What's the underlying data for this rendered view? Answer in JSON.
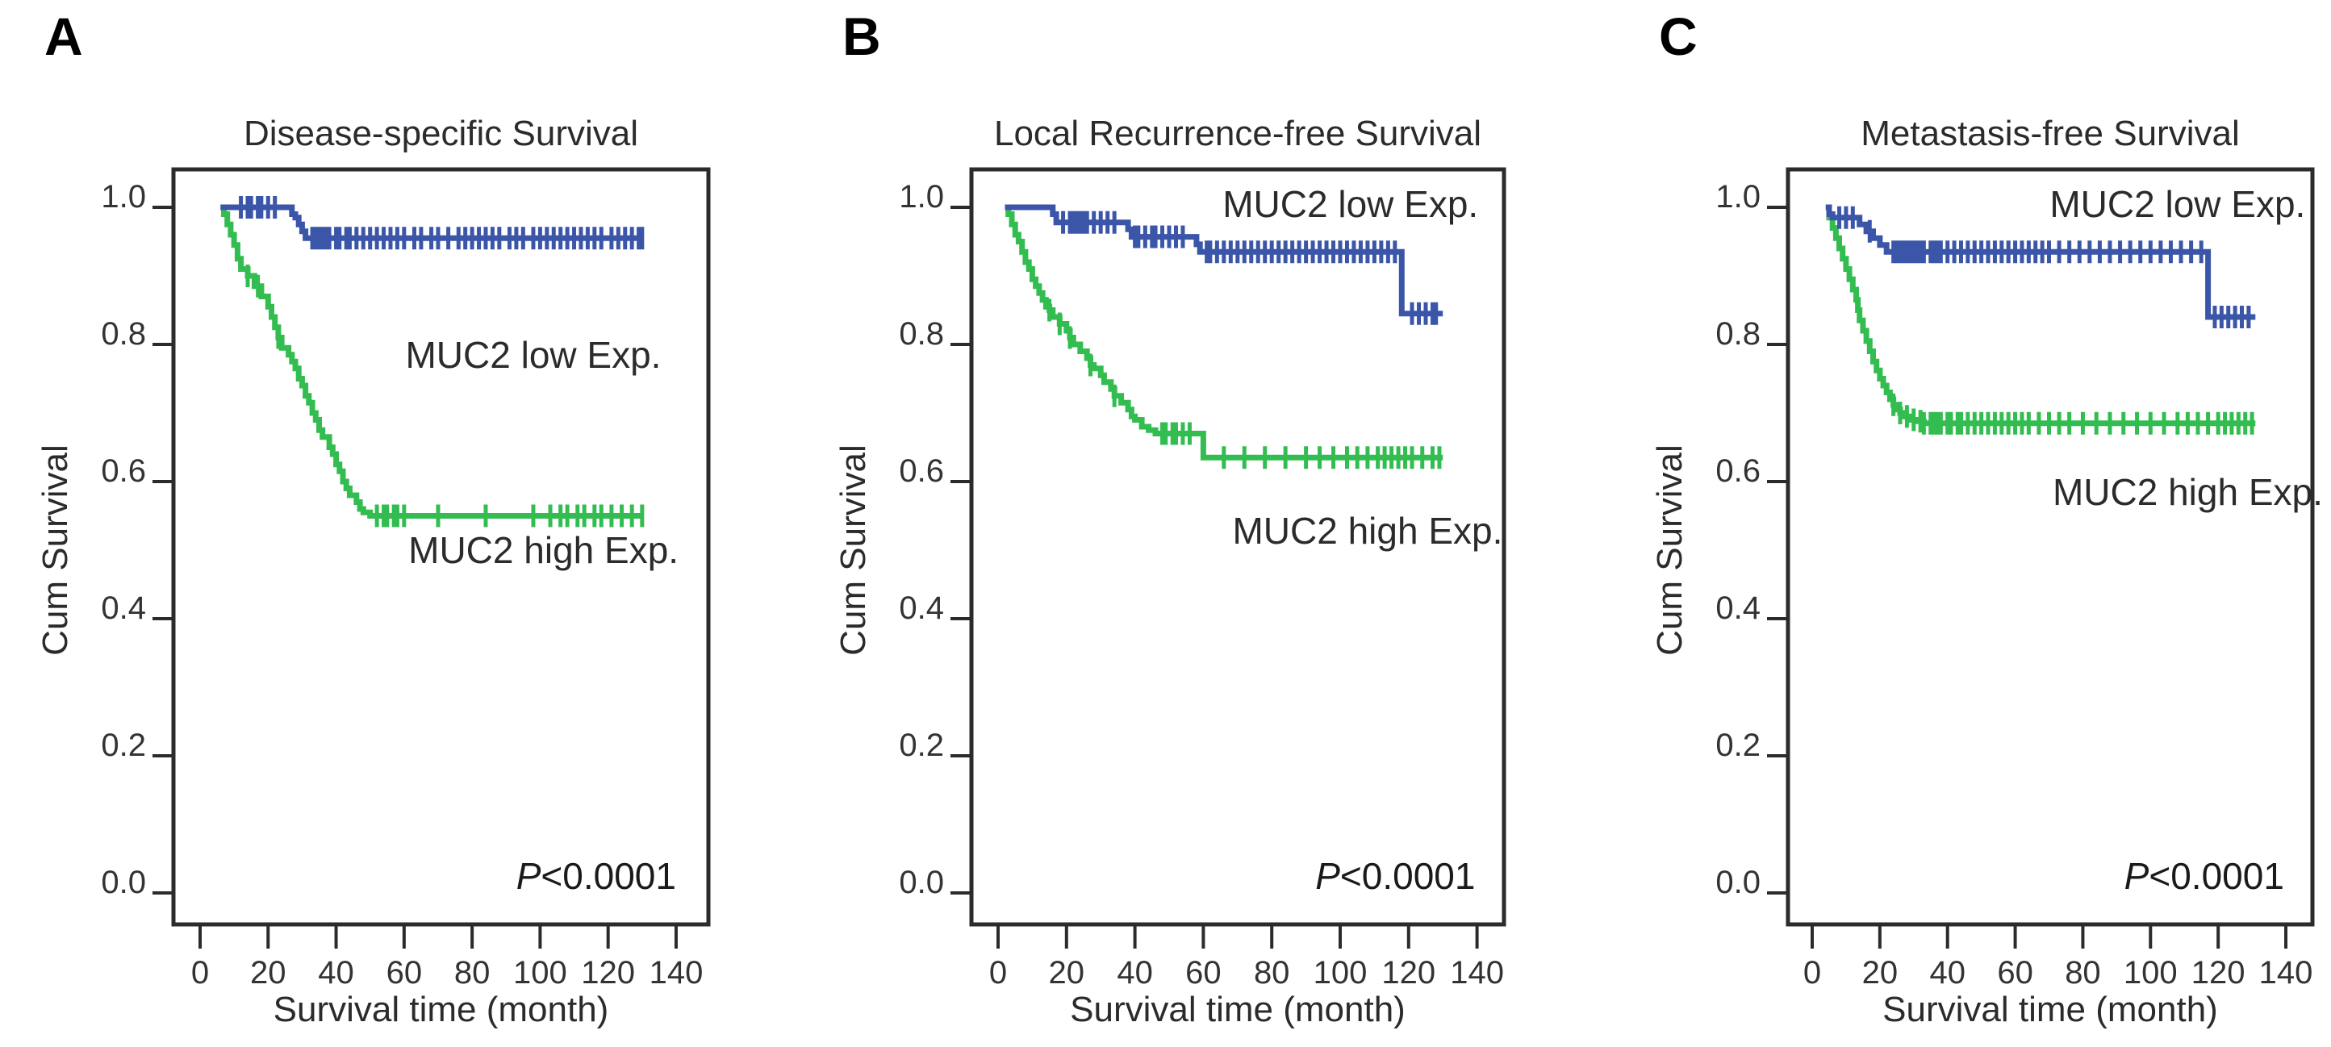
{
  "figure": {
    "background": "#ffffff",
    "text_color": "#333333",
    "frame_color": "#2b2b2b",
    "x_ticks": [
      "0",
      "20",
      "40",
      "60",
      "80",
      "100",
      "120",
      "140"
    ],
    "x_tick_months": [
      0,
      20,
      40,
      60,
      80,
      100,
      120,
      140
    ],
    "y_ticks": [
      "0.0",
      "0.2",
      "0.4",
      "0.6",
      "0.8",
      "1.0"
    ],
    "y_tick_values": [
      0,
      0.2,
      0.4,
      0.6,
      0.8,
      1.0
    ],
    "series_colors": {
      "low": "#3b56a8",
      "high": "#33bd51"
    }
  },
  "chart_data": [
    {
      "type": "line",
      "subtype": "kaplan_meier_step",
      "panel_label": "A",
      "title": "Disease-specific Survival",
      "xlabel": "Survival time (month)",
      "ylabel": "Cum Survival",
      "xlim": [
        0,
        140
      ],
      "ylim": [
        0.0,
        1.0
      ],
      "grid": false,
      "legend_position": "annotated-on-plot",
      "p_label": "P",
      "p_rest": "<0.0001",
      "p_pos": {
        "month": 140,
        "survival": 0.025
      },
      "annotations": [
        {
          "text": "MUC2 low Exp.",
          "month": 98,
          "survival": 0.785
        },
        {
          "text": "MUC2 high Exp.",
          "month": 101,
          "survival": 0.5
        }
      ],
      "layout": {
        "frame_left": 215,
        "frame_right": 878,
        "x0": 248,
        "ppm": 4.214
      },
      "series": [
        {
          "name": "MUC2 high Exp.",
          "group": "high",
          "color": "#33bd51",
          "steps": [
            [
              6,
              1.0
            ],
            [
              7,
              0.99
            ],
            [
              8,
              0.975
            ],
            [
              9,
              0.96
            ],
            [
              10,
              0.945
            ],
            [
              11,
              0.925
            ],
            [
              12,
              0.91
            ],
            [
              14,
              0.9
            ],
            [
              16,
              0.885
            ],
            [
              18,
              0.87
            ],
            [
              20,
              0.855
            ],
            [
              21,
              0.84
            ],
            [
              22,
              0.825
            ],
            [
              23,
              0.81
            ],
            [
              24,
              0.795
            ],
            [
              26,
              0.785
            ],
            [
              27,
              0.775
            ],
            [
              28,
              0.765
            ],
            [
              29,
              0.75
            ],
            [
              30,
              0.74
            ],
            [
              31,
              0.725
            ],
            [
              32,
              0.715
            ],
            [
              33,
              0.7
            ],
            [
              34,
              0.69
            ],
            [
              35,
              0.675
            ],
            [
              36,
              0.665
            ],
            [
              38,
              0.65
            ],
            [
              39,
              0.64
            ],
            [
              40,
              0.625
            ],
            [
              41,
              0.615
            ],
            [
              42,
              0.6
            ],
            [
              43,
              0.59
            ],
            [
              44,
              0.58
            ],
            [
              46,
              0.57
            ],
            [
              47,
              0.56
            ],
            [
              48,
              0.555
            ],
            [
              50,
              0.55
            ],
            [
              130,
              0.55
            ]
          ],
          "censors": [
            14,
            17,
            23,
            52,
            54,
            55,
            57,
            58,
            60,
            70,
            84,
            98,
            103,
            106,
            108,
            111,
            113,
            116,
            118,
            121,
            124,
            127,
            130
          ]
        },
        {
          "name": "MUC2 low Exp.",
          "group": "low",
          "color": "#3b56a8",
          "steps": [
            [
              6,
              1.0
            ],
            [
              26,
              1.0
            ],
            [
              27,
              0.99
            ],
            [
              28,
              0.985
            ],
            [
              29,
              0.975
            ],
            [
              30,
              0.965
            ],
            [
              31,
              0.955
            ],
            [
              130,
              0.955
            ]
          ],
          "censors": [
            12,
            14,
            15,
            17,
            18,
            20,
            22,
            33,
            34,
            35,
            36,
            37,
            38,
            40,
            41,
            43,
            44,
            46,
            48,
            50,
            52,
            54,
            56,
            58,
            60,
            63,
            65,
            68,
            70,
            73,
            76,
            78,
            80,
            82,
            84,
            86,
            88,
            91,
            93,
            95,
            98,
            100,
            102,
            104,
            106,
            108,
            110,
            112,
            114,
            116,
            118,
            121,
            123,
            125,
            127,
            129,
            130
          ]
        }
      ]
    },
    {
      "type": "line",
      "subtype": "kaplan_meier_step",
      "panel_label": "B",
      "title": "Local Recurrence-free Survival",
      "xlabel": "Survival time (month)",
      "ylabel": "Cum Survival",
      "xlim": [
        0,
        140
      ],
      "ylim": [
        0.0,
        1.0
      ],
      "grid": false,
      "legend_position": "annotated-on-plot",
      "p_label": "P",
      "p_rest": "<0.0001",
      "p_pos": {
        "month": 139.5,
        "survival": 0.025
      },
      "annotations": [
        {
          "text": "MUC2 low Exp.",
          "month": 103,
          "survival": 1.005
        },
        {
          "text": "MUC2 high Exp.",
          "month": 108,
          "survival": 0.528
        }
      ],
      "layout": {
        "frame_left": 241,
        "frame_right": 901,
        "x0": 274,
        "ppm": 4.24
      },
      "series": [
        {
          "name": "MUC2 high Exp.",
          "group": "high",
          "color": "#33bd51",
          "steps": [
            [
              2,
              1.0
            ],
            [
              3,
              0.99
            ],
            [
              4,
              0.975
            ],
            [
              5,
              0.96
            ],
            [
              6,
              0.95
            ],
            [
              7,
              0.935
            ],
            [
              8,
              0.92
            ],
            [
              9,
              0.91
            ],
            [
              10,
              0.895
            ],
            [
              11,
              0.885
            ],
            [
              12,
              0.875
            ],
            [
              13,
              0.865
            ],
            [
              14,
              0.855
            ],
            [
              15,
              0.85
            ],
            [
              16,
              0.84
            ],
            [
              18,
              0.83
            ],
            [
              20,
              0.82
            ],
            [
              21,
              0.81
            ],
            [
              22,
              0.8
            ],
            [
              24,
              0.79
            ],
            [
              26,
              0.78
            ],
            [
              27,
              0.77
            ],
            [
              28,
              0.765
            ],
            [
              30,
              0.755
            ],
            [
              31,
              0.745
            ],
            [
              33,
              0.735
            ],
            [
              34,
              0.725
            ],
            [
              36,
              0.715
            ],
            [
              38,
              0.705
            ],
            [
              39,
              0.695
            ],
            [
              40,
              0.69
            ],
            [
              42,
              0.68
            ],
            [
              44,
              0.675
            ],
            [
              46,
              0.67
            ],
            [
              59,
              0.67
            ],
            [
              60,
              0.635
            ],
            [
              130,
              0.635
            ]
          ],
          "censors": [
            15,
            18,
            21,
            27,
            34,
            48,
            49,
            51,
            52,
            54,
            56,
            66,
            72,
            78,
            84,
            90,
            94,
            98,
            102,
            105,
            108,
            111,
            113,
            115,
            117,
            119,
            121,
            124,
            127,
            129
          ]
        },
        {
          "name": "MUC2 low Exp.",
          "group": "low",
          "color": "#3b56a8",
          "steps": [
            [
              2,
              1.0
            ],
            [
              15,
              1.0
            ],
            [
              16,
              0.99
            ],
            [
              17,
              0.978
            ],
            [
              37,
              0.978
            ],
            [
              38,
              0.968
            ],
            [
              39,
              0.957
            ],
            [
              57,
              0.957
            ],
            [
              58,
              0.946
            ],
            [
              59,
              0.935
            ],
            [
              117,
              0.935
            ],
            [
              118,
              0.845
            ],
            [
              130,
              0.845
            ]
          ],
          "censors": [
            19,
            21,
            22,
            23,
            24,
            25,
            26,
            28,
            30,
            32,
            34,
            40,
            41,
            43,
            45,
            46,
            48,
            50,
            52,
            54,
            61,
            62,
            64,
            66,
            68,
            70,
            72,
            74,
            76,
            78,
            80,
            82,
            84,
            86,
            88,
            90,
            92,
            94,
            96,
            98,
            100,
            102,
            104,
            106,
            108,
            110,
            112,
            114,
            116,
            121,
            123,
            125,
            127,
            128
          ]
        }
      ]
    },
    {
      "type": "line",
      "subtype": "kaplan_meier_step",
      "panel_label": "C",
      "title": "Metastasis-free Survival",
      "xlabel": "Survival time (month)",
      "ylabel": "Cum Survival",
      "xlim": [
        0,
        140
      ],
      "ylim": [
        0.0,
        1.0
      ],
      "grid": false,
      "legend_position": "annotated-on-plot",
      "p_label": "P",
      "p_rest": "<0.0001",
      "p_pos": {
        "month": 139.5,
        "survival": 0.025
      },
      "annotations": [
        {
          "text": "MUC2 low Exp.",
          "month": 108,
          "survival": 1.005
        },
        {
          "text": "MUC2 high Exp.",
          "month": 111,
          "survival": 0.585
        }
      ],
      "layout": {
        "frame_left": 290,
        "frame_right": 940,
        "x0": 320,
        "ppm": 4.193
      },
      "series": [
        {
          "name": "MUC2 high Exp.",
          "group": "high",
          "color": "#33bd51",
          "steps": [
            [
              4,
              1.0
            ],
            [
              5,
              0.985
            ],
            [
              6,
              0.97
            ],
            [
              7,
              0.955
            ],
            [
              8,
              0.94
            ],
            [
              9,
              0.925
            ],
            [
              10,
              0.91
            ],
            [
              11,
              0.895
            ],
            [
              12,
              0.88
            ],
            [
              13,
              0.865
            ],
            [
              13.5,
              0.85
            ],
            [
              14,
              0.835
            ],
            [
              15,
              0.82
            ],
            [
              16,
              0.805
            ],
            [
              17,
              0.79
            ],
            [
              18,
              0.775
            ],
            [
              19,
              0.762
            ],
            [
              20,
              0.75
            ],
            [
              21,
              0.74
            ],
            [
              22,
              0.73
            ],
            [
              23,
              0.72
            ],
            [
              24,
              0.712
            ],
            [
              25,
              0.705
            ],
            [
              26,
              0.7
            ],
            [
              27,
              0.695
            ],
            [
              29,
              0.69
            ],
            [
              31,
              0.688
            ],
            [
              33,
              0.685
            ],
            [
              131,
              0.685
            ]
          ],
          "censors": [
            24,
            26,
            28,
            30,
            32,
            33,
            35,
            36,
            37,
            38,
            40,
            41,
            43,
            44,
            46,
            48,
            50,
            52,
            54,
            56,
            58,
            60,
            62,
            64,
            67,
            70,
            73,
            76,
            80,
            84,
            88,
            92,
            96,
            100,
            104,
            108,
            111,
            114,
            117,
            120,
            122,
            124,
            126,
            128,
            130
          ]
        },
        {
          "name": "MUC2 low Exp.",
          "group": "low",
          "color": "#3b56a8",
          "steps": [
            [
              4,
              1.0
            ],
            [
              5,
              0.99
            ],
            [
              6,
              0.985
            ],
            [
              13,
              0.985
            ],
            [
              14,
              0.975
            ],
            [
              16,
              0.965
            ],
            [
              18,
              0.955
            ],
            [
              20,
              0.945
            ],
            [
              22,
              0.935
            ],
            [
              116,
              0.935
            ],
            [
              117,
              0.84
            ],
            [
              131,
              0.84
            ]
          ],
          "censors": [
            8,
            10,
            12,
            17,
            24,
            25,
            26,
            27,
            28,
            29,
            30,
            31,
            32,
            33,
            35,
            36,
            37,
            38,
            40,
            42,
            44,
            46,
            48,
            50,
            52,
            54,
            56,
            58,
            60,
            62,
            64,
            66,
            68,
            70,
            73,
            76,
            79,
            82,
            85,
            88,
            91,
            94,
            97,
            100,
            103,
            106,
            109,
            112,
            115,
            119,
            121,
            123,
            125,
            127,
            129
          ]
        }
      ]
    }
  ]
}
